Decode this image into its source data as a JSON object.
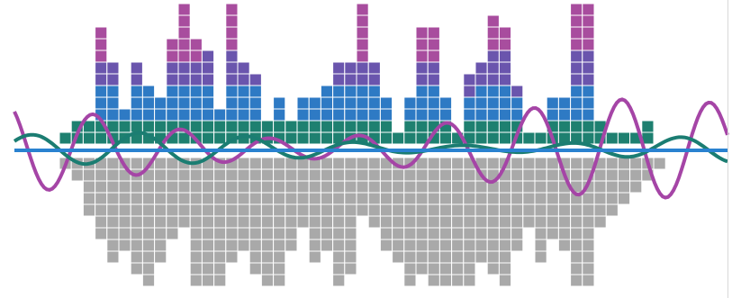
{
  "artwork": {
    "colors": {
      "background": "#ffffff",
      "cell_border": "#ffffff",
      "upper_tiers": [
        "#1e8070",
        "#2e7ac4",
        "#6a55ad",
        "#a84d9e"
      ],
      "lower_cells": "#a9a9a9",
      "baseline": "#2a82d0",
      "wave_teal": "#1b7d72",
      "wave_magenta": "#a545a6"
    },
    "upper_columns": [
      [
        1,
        0,
        0,
        0
      ],
      [
        2,
        0,
        0,
        0
      ],
      [
        2,
        0,
        0,
        0
      ],
      [
        2,
        3,
        2,
        3
      ],
      [
        2,
        3,
        2,
        0
      ],
      [
        2,
        1,
        0,
        0
      ],
      [
        2,
        3,
        2,
        0
      ],
      [
        2,
        3,
        0,
        0
      ],
      [
        2,
        2,
        0,
        0
      ],
      [
        2,
        3,
        2,
        2
      ],
      [
        2,
        3,
        2,
        5
      ],
      [
        2,
        3,
        2,
        2
      ],
      [
        2,
        3,
        3,
        0
      ],
      [
        2,
        1,
        0,
        0
      ],
      [
        2,
        3,
        3,
        4
      ],
      [
        2,
        3,
        2,
        0
      ],
      [
        2,
        3,
        1,
        0
      ],
      [
        2,
        0,
        0,
        0
      ],
      [
        2,
        2,
        0,
        0
      ],
      [
        2,
        0,
        0,
        0
      ],
      [
        2,
        2,
        0,
        0
      ],
      [
        2,
        2,
        0,
        0
      ],
      [
        2,
        3,
        0,
        0
      ],
      [
        2,
        3,
        2,
        0
      ],
      [
        2,
        3,
        2,
        0
      ],
      [
        2,
        3,
        2,
        5
      ],
      [
        2,
        3,
        2,
        0
      ],
      [
        2,
        2,
        0,
        0
      ],
      [
        1,
        0,
        0,
        0
      ],
      [
        2,
        2,
        0,
        0
      ],
      [
        2,
        3,
        2,
        3
      ],
      [
        2,
        3,
        2,
        3
      ],
      [
        2,
        2,
        0,
        0
      ],
      [
        1,
        0,
        0,
        0
      ],
      [
        2,
        2,
        2,
        0
      ],
      [
        2,
        3,
        2,
        0
      ],
      [
        2,
        3,
        3,
        3
      ],
      [
        2,
        3,
        3,
        2
      ],
      [
        2,
        2,
        1,
        0
      ],
      [
        1,
        0,
        0,
        0
      ],
      [
        1,
        0,
        0,
        0
      ],
      [
        2,
        2,
        0,
        0
      ],
      [
        2,
        2,
        0,
        0
      ],
      [
        2,
        3,
        3,
        4
      ],
      [
        2,
        3,
        3,
        4
      ],
      [
        2,
        0,
        0,
        0
      ],
      [
        1,
        0,
        0,
        0
      ],
      [
        1,
        0,
        0,
        0
      ],
      [
        1,
        0,
        0,
        0
      ],
      [
        2,
        0,
        0,
        0
      ],
      [
        0,
        0,
        0,
        0
      ],
      [
        0,
        0,
        0,
        0
      ]
    ],
    "lower_columns": [
      1,
      2,
      5,
      7,
      9,
      8,
      10,
      11,
      9,
      7,
      6,
      12,
      13,
      11,
      9,
      8,
      10,
      12,
      13,
      8,
      6,
      9,
      8,
      12,
      10,
      5,
      6,
      8,
      9,
      11,
      10,
      12,
      13,
      12,
      11,
      9,
      10,
      12,
      8,
      6,
      9,
      7,
      8,
      13,
      12,
      6,
      5,
      4,
      3,
      2,
      1,
      0
    ],
    "waves": [
      {
        "id": "teal",
        "offset": 0,
        "amplitude": 0.55,
        "frequency": 1.1,
        "phase": 0.6
      },
      {
        "id": "magenta",
        "offset": 0,
        "amplitude": 1.0,
        "frequency": 1.35,
        "phase": 2.2
      }
    ]
  }
}
